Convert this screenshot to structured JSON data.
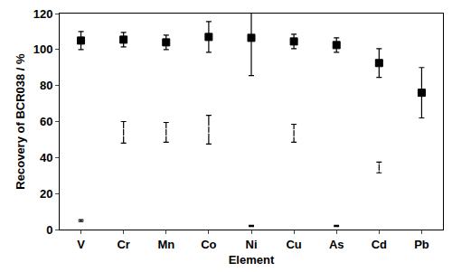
{
  "chart_data": {
    "type": "scatter",
    "x_label": "Element",
    "y_label": "Recovery of BCR038 / %",
    "categories": [
      "V",
      "Cr",
      "Mn",
      "Co",
      "Ni",
      "Cu",
      "As",
      "Cd",
      "Pb"
    ],
    "series": [
      {
        "color": "#000000",
        "marker": "square",
        "values": [
          105,
          105.5,
          104,
          107,
          106.5,
          104.5,
          102.5,
          92.5,
          76
        ],
        "error": [
          5,
          4,
          4,
          8.5,
          21,
          4,
          4,
          8,
          14
        ]
      },
      {
        "color": "#000000",
        "marker": "circle-open",
        "values": [
          5,
          54,
          54,
          55.5,
          2,
          53.5,
          2,
          34.5,
          null
        ],
        "error": [
          0.5,
          6,
          5.5,
          8,
          0.3,
          5,
          0.3,
          3,
          null
        ]
      }
    ],
    "ylim": [
      0,
      120
    ],
    "yticks": [
      0,
      20,
      40,
      60,
      80,
      100,
      120
    ],
    "grid": false
  }
}
